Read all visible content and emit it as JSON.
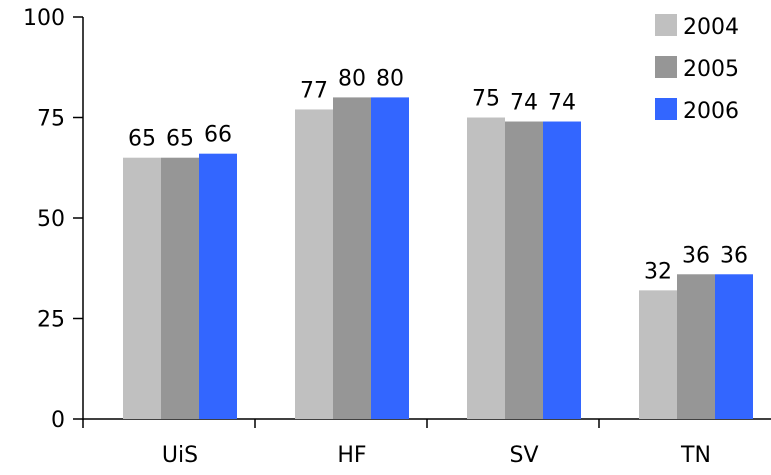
{
  "chart_data": {
    "type": "bar",
    "categories": [
      "UiS",
      "HF",
      "SV",
      "TN"
    ],
    "series": [
      {
        "name": "2004",
        "values": [
          65,
          77,
          75,
          32
        ],
        "color": "#c0c0c0"
      },
      {
        "name": "2005",
        "values": [
          65,
          80,
          74,
          36
        ],
        "color": "#969696"
      },
      {
        "name": "2006",
        "values": [
          66,
          80,
          74,
          36
        ],
        "color": "#3366ff"
      }
    ],
    "title": "",
    "xlabel": "",
    "ylabel": "",
    "ylim": [
      0,
      100
    ],
    "yticks": [
      0,
      25,
      50,
      75,
      100
    ],
    "grid": false,
    "legend_position": "top-right",
    "data_labels": true
  }
}
